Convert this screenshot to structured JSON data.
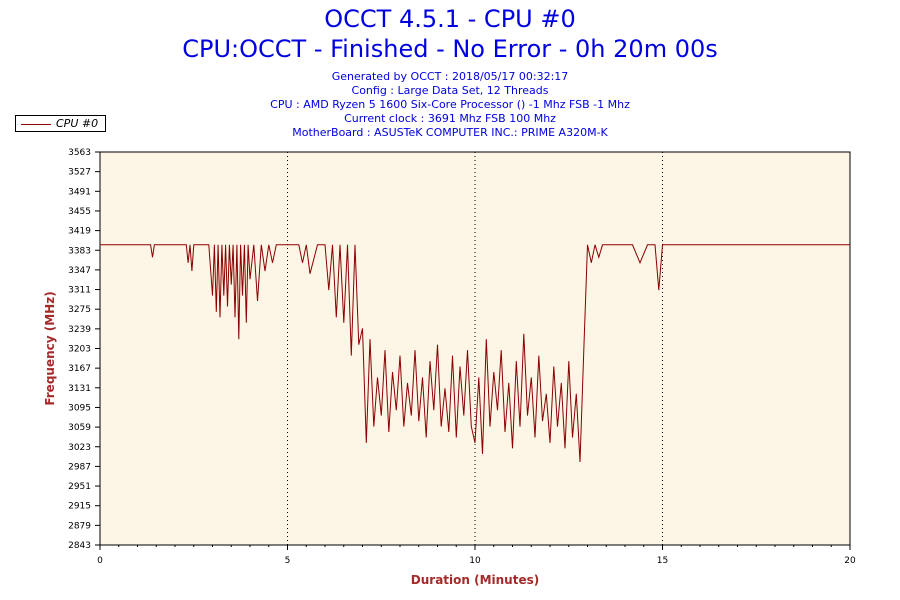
{
  "header": {
    "title": "OCCT 4.5.1 - CPU #0",
    "subtitle": "CPU:OCCT - Finished - No Error - 0h 20m 00s",
    "info_lines": [
      "Generated by OCCT : 2018/05/17 00:32:17",
      "Config : Large Data Set, 12 Threads",
      "CPU : AMD Ryzen 5 1600 Six-Core Processor () -1 Mhz FSB -1 Mhz",
      "Current clock : 3691 Mhz FSB 100 Mhz",
      "MotherBoard : ASUSTeK COMPUTER INC.: PRIME A320M-K"
    ]
  },
  "legend": {
    "label": "CPU #0",
    "color": "#8b0000"
  },
  "colors": {
    "plot_bg": "#fdf5e6",
    "series": "#8b0000",
    "axis_label": "#a52a2a",
    "title": "#0000e0"
  },
  "chart_data": {
    "type": "line",
    "xlabel": "Duration (Minutes)",
    "ylabel": "Frequency (MHz)",
    "xlim": [
      0,
      20
    ],
    "ylim": [
      2843,
      3563
    ],
    "x_ticks": [
      "0",
      "5",
      "10",
      "15",
      "20"
    ],
    "y_ticks": [
      "2843",
      "2879",
      "2915",
      "2951",
      "2987",
      "3023",
      "3059",
      "3095",
      "3131",
      "3167",
      "3203",
      "3239",
      "3275",
      "3311",
      "3347",
      "3383",
      "3419",
      "3455",
      "3491",
      "3527",
      "3563"
    ],
    "grid": "vertical dotted at 5, 10, 15",
    "series": [
      {
        "name": "CPU #0",
        "x": [
          0,
          1.35,
          1.4,
          1.45,
          2.3,
          2.35,
          2.4,
          2.45,
          2.5,
          2.9,
          3.0,
          3.05,
          3.1,
          3.15,
          3.2,
          3.25,
          3.3,
          3.35,
          3.4,
          3.45,
          3.5,
          3.55,
          3.6,
          3.65,
          3.7,
          3.75,
          3.8,
          3.85,
          3.9,
          3.95,
          4.0,
          4.1,
          4.2,
          4.3,
          4.4,
          4.5,
          4.6,
          4.7,
          4.8,
          5.0,
          5.3,
          5.4,
          5.5,
          5.6,
          5.8,
          6.0,
          6.1,
          6.2,
          6.3,
          6.4,
          6.5,
          6.6,
          6.7,
          6.8,
          6.9,
          7.0,
          7.1,
          7.2,
          7.3,
          7.4,
          7.5,
          7.6,
          7.7,
          7.8,
          7.9,
          8.0,
          8.1,
          8.2,
          8.3,
          8.4,
          8.5,
          8.6,
          8.7,
          8.8,
          8.9,
          9.0,
          9.1,
          9.2,
          9.3,
          9.4,
          9.5,
          9.6,
          9.7,
          9.8,
          9.9,
          10.0,
          10.1,
          10.2,
          10.3,
          10.4,
          10.5,
          10.6,
          10.7,
          10.8,
          10.9,
          11.0,
          11.1,
          11.2,
          11.3,
          11.4,
          11.5,
          11.6,
          11.7,
          11.8,
          11.9,
          12.0,
          12.1,
          12.2,
          12.3,
          12.4,
          12.5,
          12.6,
          12.7,
          12.8,
          12.9,
          13.0,
          13.1,
          13.2,
          13.3,
          13.4,
          13.6,
          13.8,
          14.0,
          14.2,
          14.4,
          14.6,
          14.8,
          14.9,
          15.0,
          15.1,
          15.2,
          16.0,
          17.0,
          18.0,
          19.0,
          20.0
        ],
        "y": [
          3393,
          3393,
          3370,
          3393,
          3393,
          3360,
          3393,
          3345,
          3393,
          3393,
          3300,
          3393,
          3270,
          3393,
          3260,
          3393,
          3300,
          3393,
          3280,
          3393,
          3320,
          3393,
          3260,
          3393,
          3220,
          3393,
          3300,
          3393,
          3250,
          3393,
          3330,
          3393,
          3290,
          3393,
          3345,
          3393,
          3360,
          3393,
          3393,
          3393,
          3393,
          3360,
          3393,
          3340,
          3393,
          3393,
          3310,
          3393,
          3260,
          3393,
          3250,
          3393,
          3190,
          3393,
          3210,
          3240,
          3030,
          3220,
          3060,
          3150,
          3080,
          3200,
          3050,
          3160,
          3090,
          3190,
          3060,
          3140,
          3080,
          3200,
          3070,
          3150,
          3040,
          3180,
          3090,
          3210,
          3060,
          3130,
          3050,
          3190,
          3040,
          3170,
          3080,
          3200,
          3060,
          3030,
          3150,
          3010,
          3220,
          3060,
          3160,
          3090,
          3200,
          3050,
          3140,
          3020,
          3180,
          3060,
          3230,
          3080,
          3150,
          3040,
          3190,
          3070,
          3120,
          3030,
          3170,
          3060,
          3140,
          3020,
          3180,
          3040,
          3120,
          2995,
          3200,
          3393,
          3360,
          3393,
          3370,
          3393,
          3393,
          3393,
          3393,
          3393,
          3360,
          3393,
          3393,
          3310,
          3393,
          3393,
          3393,
          3393,
          3393,
          3393,
          3393,
          3393
        ]
      }
    ]
  }
}
